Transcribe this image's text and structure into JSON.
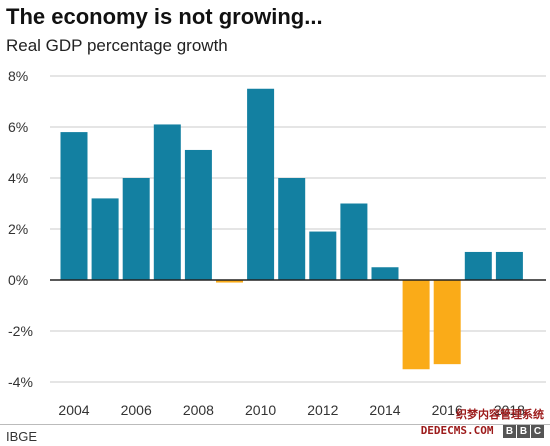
{
  "chart_data": {
    "type": "bar",
    "title": "The economy is not growing...",
    "subtitle": "Real GDP percentage growth",
    "source": "IBGE",
    "x": [
      2004,
      2005,
      2006,
      2007,
      2008,
      2009,
      2010,
      2011,
      2012,
      2013,
      2014,
      2015,
      2016,
      2017,
      2018
    ],
    "values": [
      5.8,
      3.2,
      4.0,
      6.1,
      5.1,
      -0.1,
      7.5,
      4.0,
      1.9,
      3.0,
      0.5,
      -3.5,
      -3.3,
      1.1,
      1.1
    ],
    "x_tick_labels": [
      "2004",
      "2006",
      "2008",
      "2010",
      "2012",
      "2014",
      "2016",
      "2018"
    ],
    "y_tick_labels": [
      "8%",
      "6%",
      "4%",
      "2%",
      "0%",
      "-2%",
      "-4%"
    ],
    "ylim": [
      -4,
      8
    ],
    "grid": true,
    "colors": {
      "positive": "#1380A1",
      "negative": "#FAAB18",
      "grid": "#cbcbcb",
      "zero_line": "#222222"
    }
  },
  "watermark": {
    "cn_text": "织梦内容管理系统",
    "domain": "DEDECMS.COM",
    "logo_letters": [
      "B",
      "B",
      "C"
    ]
  }
}
